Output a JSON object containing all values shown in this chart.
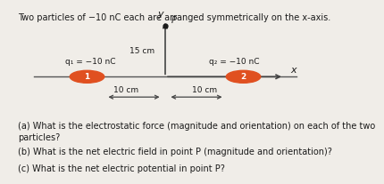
{
  "title": "Two particles of −10 nC each are arranged symmetrically on the x-axis.",
  "title_fontsize": 7.0,
  "bg_color": "#f0ede8",
  "q1_label": "q₁ = −10 nC",
  "q2_label": "q₂ = −10 nC",
  "charge_color": "#e05020",
  "p_label": "P",
  "dist_label_bottom": "10 cm",
  "dist_label_bottom2": "10 cm",
  "dist_label_left": "15 cm",
  "label_1": "1",
  "label_2": "2",
  "label_x": "x",
  "label_y": "y",
  "qa_text": "(a) What is the electrostatic force (magnitude and orientation) on each of the two\nparticles?",
  "qb_text": "(b) What is the net electric field in point P (magnitude and orientation)?",
  "qc_text": "(c) What is the net electric potential in point P?",
  "q_fontsize": 7.0,
  "axis_color": "#444444",
  "line_color": "#555555"
}
